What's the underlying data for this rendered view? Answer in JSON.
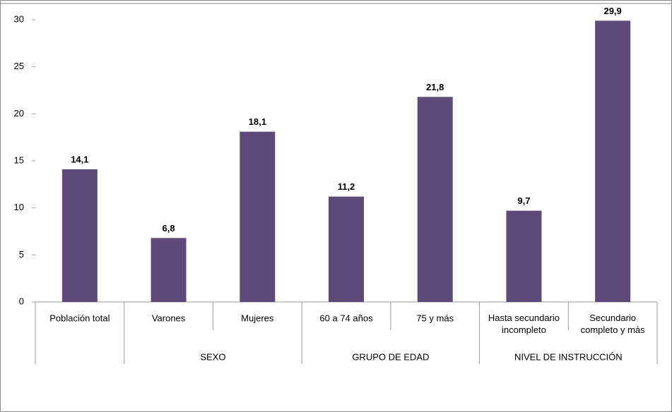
{
  "chart_data": {
    "type": "bar",
    "groups": [
      {
        "label": null,
        "categories": [
          "Población total"
        ]
      },
      {
        "label": "SEXO",
        "categories": [
          "Varones",
          "Mujeres"
        ]
      },
      {
        "label": "GRUPO DE EDAD",
        "categories": [
          "60 a 74 años",
          "75 y más"
        ]
      },
      {
        "label": "NIVEL DE INSTRUCCIÓN",
        "categories": [
          "Hasta secundario incompleto",
          "Secundario completo y más"
        ]
      }
    ],
    "values": [
      14.1,
      6.8,
      18.1,
      11.2,
      21.8,
      9.7,
      29.9
    ],
    "value_labels": [
      "14,1",
      "6,8",
      "18,1",
      "11,2",
      "21,8",
      "9,7",
      "29,9"
    ],
    "color": "#5e4a78",
    "ylim": [
      0,
      30
    ],
    "yticks": [
      0,
      5,
      10,
      15,
      20,
      25,
      30
    ],
    "grid": false
  }
}
